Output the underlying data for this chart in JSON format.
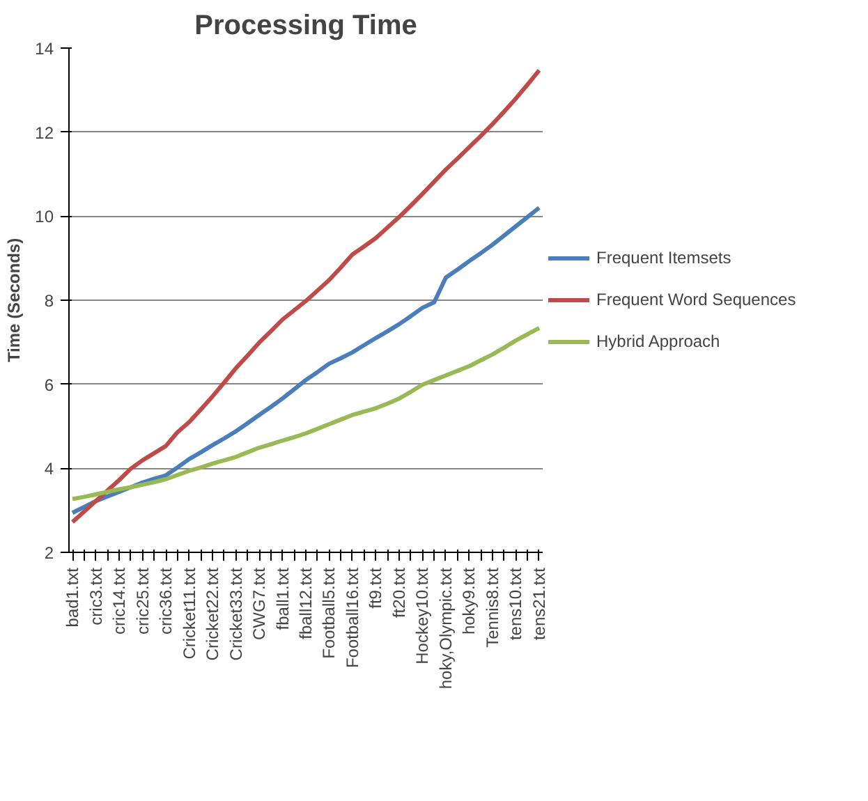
{
  "chart_data": {
    "type": "line",
    "title": "Processing Time",
    "ylabel": "Time (Seconds)",
    "categories": [
      "bad1.txt",
      null,
      "cric3.txt",
      null,
      "cric14.txt",
      null,
      "cric25.txt",
      null,
      "cric36.txt",
      null,
      "Cricket11.txt",
      null,
      "Cricket22.txt",
      null,
      "Cricket33.txt",
      null,
      "CWG7.txt",
      null,
      "fball1.txt",
      null,
      "fball12.txt",
      null,
      "Football5.txt",
      null,
      "Football16.txt",
      null,
      "ft9.txt",
      null,
      "ft20.txt",
      null,
      "Hockey10.txt",
      null,
      "hoky,Olympic.txt",
      null,
      "hoky9.txt",
      null,
      "Tennis8.txt",
      null,
      "tens10.txt",
      null,
      "tens21.txt"
    ],
    "series": [
      {
        "name": "Frequent Itemsets",
        "color": "#4a7ebb",
        "values": [
          2.94,
          3.08,
          3.22,
          3.33,
          3.44,
          3.55,
          3.66,
          3.75,
          3.83,
          4.02,
          4.22,
          4.38,
          4.55,
          4.71,
          4.88,
          5.07,
          5.27,
          5.46,
          5.66,
          5.88,
          6.1,
          6.29,
          6.49,
          6.62,
          6.76,
          6.93,
          7.1,
          7.26,
          7.43,
          7.62,
          7.82,
          7.95,
          8.54,
          8.73,
          8.93,
          9.12,
          9.32,
          9.54,
          9.76,
          9.98,
          10.2
        ]
      },
      {
        "name": "Frequent Word Sequences",
        "color": "#be4b48",
        "values": [
          2.72,
          2.97,
          3.22,
          3.47,
          3.72,
          3.99,
          4.19,
          4.36,
          4.53,
          4.86,
          5.1,
          5.4,
          5.71,
          6.04,
          6.38,
          6.68,
          6.99,
          7.26,
          7.54,
          7.76,
          7.98,
          8.23,
          8.48,
          8.78,
          9.09,
          9.28,
          9.48,
          9.73,
          9.98,
          10.25,
          10.53,
          10.82,
          11.11,
          11.37,
          11.64,
          11.91,
          12.19,
          12.49,
          12.8,
          13.13,
          13.47
        ]
      },
      {
        "name": "Hybrid Approach",
        "color": "#98b954",
        "values": [
          3.27,
          3.32,
          3.38,
          3.44,
          3.5,
          3.55,
          3.61,
          3.67,
          3.74,
          3.84,
          3.94,
          4.02,
          4.11,
          4.19,
          4.27,
          4.38,
          4.49,
          4.57,
          4.66,
          4.74,
          4.83,
          4.94,
          5.05,
          5.16,
          5.27,
          5.35,
          5.43,
          5.54,
          5.66,
          5.82,
          5.99,
          6.1,
          6.21,
          6.32,
          6.43,
          6.57,
          6.71,
          6.87,
          7.04,
          7.19,
          7.34
        ]
      }
    ],
    "ylim": [
      2,
      14
    ],
    "yticks": [
      2,
      4,
      6,
      8,
      10,
      12,
      14
    ],
    "grid": "y",
    "legend": "right",
    "marker": "none",
    "line_style": "solid"
  }
}
